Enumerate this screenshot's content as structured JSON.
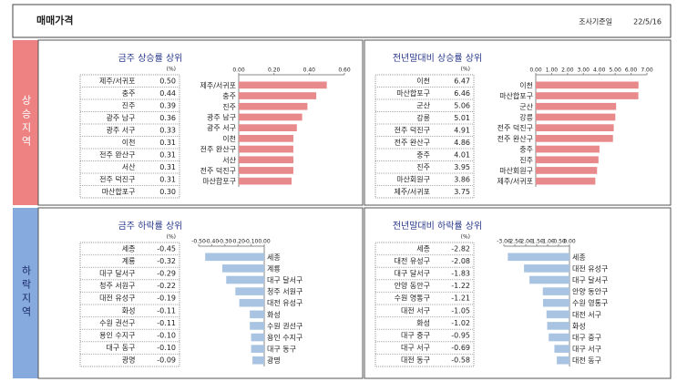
{
  "header": {
    "title": "매매가격",
    "date_label": "조사기준일",
    "date": "22/5/16"
  },
  "sections": [
    {
      "label": "상승지역"
    },
    {
      "label": "하락지역"
    }
  ],
  "chart_data": [
    {
      "type": "bar",
      "orientation": "horizontal",
      "title": "금주 상승률 상위",
      "unit": "(%)",
      "categories": [
        "제주/서귀포",
        "충주",
        "진주",
        "광주 남구",
        "광주 서구",
        "이천",
        "전주 완산구",
        "서산",
        "전주 덕진구",
        "마산합포구"
      ],
      "values": [
        0.5,
        0.44,
        0.39,
        0.36,
        0.33,
        0.31,
        0.31,
        0.31,
        0.31,
        0.3
      ],
      "value_labels": [
        "0.50",
        "0.44",
        "0.39",
        "0.36",
        "0.33",
        "0.31",
        "0.31",
        "0.31",
        "0.31",
        "0.30"
      ],
      "xlim": [
        0,
        0.6
      ],
      "xticks": [
        {
          "value": 0,
          "label": "0.00"
        },
        {
          "value": 0.2,
          "label": "0.20"
        },
        {
          "value": 0.4,
          "label": "0.40"
        },
        {
          "value": 0.6,
          "label": "0.60"
        }
      ],
      "color": "#e88a8c"
    },
    {
      "type": "bar",
      "orientation": "horizontal",
      "title": "전년말대비 상승률 상위",
      "unit": "(%)",
      "categories": [
        "이천",
        "마산합포구",
        "군산",
        "강릉",
        "전주 덕진구",
        "전주 완산구",
        "충주",
        "진주",
        "마산회원구",
        "제주/서귀포"
      ],
      "values": [
        6.47,
        6.46,
        5.06,
        5.01,
        4.91,
        4.86,
        4.01,
        3.95,
        3.86,
        3.75
      ],
      "value_labels": [
        "6.47",
        "6.46",
        "5.06",
        "5.01",
        "4.91",
        "4.86",
        "4.01",
        "3.95",
        "3.86",
        "3.75"
      ],
      "xlim": [
        0,
        7
      ],
      "xticks": [
        {
          "value": 0,
          "label": "0.00"
        },
        {
          "value": 1,
          "label": "1.00"
        },
        {
          "value": 2,
          "label": "2.00"
        },
        {
          "value": 3,
          "label": "3.00"
        },
        {
          "value": 4,
          "label": "4.00"
        },
        {
          "value": 5,
          "label": "5.00"
        },
        {
          "value": 6,
          "label": "6.00"
        },
        {
          "value": 7,
          "label": "7.00"
        }
      ],
      "color": "#e88a8c"
    },
    {
      "type": "bar",
      "orientation": "horizontal",
      "title": "금주 하락률 상위",
      "unit": "(%)",
      "categories": [
        "세종",
        "계룡",
        "대구 달서구",
        "청주 서원구",
        "대전 유성구",
        "화성",
        "수원 권선구",
        "용인 수지구",
        "대구 동구",
        "광명"
      ],
      "values": [
        -0.45,
        -0.32,
        -0.29,
        -0.22,
        -0.19,
        -0.11,
        -0.11,
        -0.1,
        -0.1,
        -0.09
      ],
      "value_labels": [
        "-0.45",
        "-0.32",
        "-0.29",
        "-0.22",
        "-0.19",
        "-0.11",
        "-0.11",
        "-0.10",
        "-0.10",
        "-0.09"
      ],
      "xlim": [
        -0.5,
        0
      ],
      "xticks": [
        {
          "value": -0.5,
          "label": "-0.50"
        },
        {
          "value": -0.4,
          "label": "-0.40"
        },
        {
          "value": -0.3,
          "label": "-0.30"
        },
        {
          "value": -0.2,
          "label": "-0.20"
        },
        {
          "value": -0.1,
          "label": "-0.10"
        },
        {
          "value": 0,
          "label": "0.00"
        }
      ],
      "color": "#a9c4e2"
    },
    {
      "type": "bar",
      "orientation": "horizontal",
      "title": "전년말대비 하락률 상위",
      "unit": "(%)",
      "categories": [
        "세종",
        "대전 유성구",
        "대구 달서구",
        "안양 동안구",
        "수원 영통구",
        "대전 서구",
        "화성",
        "대구 중구",
        "대구 서구",
        "대전 동구"
      ],
      "values": [
        -2.82,
        -2.08,
        -1.83,
        -1.22,
        -1.21,
        -1.05,
        -1.02,
        -0.95,
        -0.69,
        -0.58
      ],
      "value_labels": [
        "-2.82",
        "-2.08",
        "-1.83",
        "-1.22",
        "-1.21",
        "-1.05",
        "-1.02",
        "-0.95",
        "-0.69",
        "-0.58"
      ],
      "xlim": [
        -3,
        0
      ],
      "xticks": [
        {
          "value": -3,
          "label": "-3.00"
        },
        {
          "value": -2.5,
          "label": "-2.50"
        },
        {
          "value": -2,
          "label": "-2.00"
        },
        {
          "value": -1.5,
          "label": "-1.50"
        },
        {
          "value": -1,
          "label": "-1.00"
        },
        {
          "value": -0.5,
          "label": "-0.50"
        },
        {
          "value": 0,
          "label": "0.00"
        }
      ],
      "color": "#a9c4e2"
    }
  ]
}
